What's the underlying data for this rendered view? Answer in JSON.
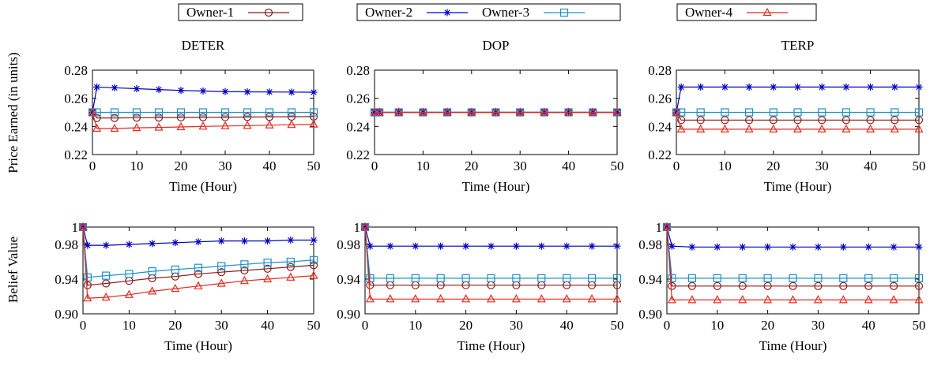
{
  "colors": {
    "owner1": "#8b1a1a",
    "owner2": "#0000c0",
    "owner3": "#1e90c8",
    "owner4": "#e8281e"
  },
  "legend": [
    {
      "label": "Owner-1",
      "marker": "circle"
    },
    {
      "label": "Owner-2",
      "marker": "star"
    },
    {
      "label": "Owner-3",
      "marker": "square"
    },
    {
      "label": "Owner-4",
      "marker": "triangle"
    }
  ],
  "row_labels": {
    "price": "Price Earned (in units)",
    "belief": "Belief Value"
  },
  "chart_data": [
    {
      "type": "line",
      "title": "DETER",
      "xlabel": "Time (Hour)",
      "ylabel": "Price Earned (in units)",
      "xlim": [
        0,
        50
      ],
      "ylim": [
        0.22,
        0.28
      ],
      "xticks": [
        0,
        10,
        20,
        30,
        40,
        50
      ],
      "yticks": [
        "0.22",
        "0.24",
        "0.26",
        "0.28"
      ],
      "x": [
        0,
        1,
        5,
        10,
        15,
        20,
        25,
        30,
        35,
        40,
        45,
        50
      ],
      "series": [
        {
          "name": "Owner-1",
          "values": [
            0.25,
            0.246,
            0.246,
            0.2462,
            0.2463,
            0.2464,
            0.2465,
            0.2466,
            0.2467,
            0.2468,
            0.2469,
            0.247
          ]
        },
        {
          "name": "Owner-2",
          "values": [
            0.25,
            0.268,
            0.2675,
            0.2668,
            0.2662,
            0.2656,
            0.2652,
            0.2648,
            0.2646,
            0.2645,
            0.2644,
            0.2643
          ]
        },
        {
          "name": "Owner-3",
          "values": [
            0.25,
            0.25,
            0.25,
            0.25,
            0.25,
            0.25,
            0.25,
            0.25,
            0.25,
            0.25,
            0.25,
            0.25
          ]
        },
        {
          "name": "Owner-4",
          "values": [
            0.25,
            0.2385,
            0.2385,
            0.239,
            0.2393,
            0.2396,
            0.24,
            0.2403,
            0.2406,
            0.2409,
            0.2412,
            0.2415
          ]
        }
      ]
    },
    {
      "type": "line",
      "title": "DOP",
      "xlabel": "Time (Hour)",
      "ylabel": "Price Earned (in units)",
      "xlim": [
        0,
        50
      ],
      "ylim": [
        0.22,
        0.28
      ],
      "xticks": [
        0,
        10,
        20,
        30,
        40,
        50
      ],
      "yticks": [
        "0.22",
        "0.24",
        "0.26",
        "0.28"
      ],
      "x": [
        0,
        1,
        5,
        10,
        15,
        20,
        25,
        30,
        35,
        40,
        45,
        50
      ],
      "series": [
        {
          "name": "Owner-1",
          "values": [
            0.25,
            0.25,
            0.25,
            0.25,
            0.25,
            0.25,
            0.25,
            0.25,
            0.25,
            0.25,
            0.25,
            0.25
          ]
        },
        {
          "name": "Owner-2",
          "values": [
            0.25,
            0.25,
            0.25,
            0.25,
            0.25,
            0.25,
            0.25,
            0.25,
            0.25,
            0.25,
            0.25,
            0.25
          ]
        },
        {
          "name": "Owner-3",
          "values": [
            0.25,
            0.25,
            0.25,
            0.25,
            0.25,
            0.25,
            0.25,
            0.25,
            0.25,
            0.25,
            0.25,
            0.25
          ]
        },
        {
          "name": "Owner-4",
          "values": [
            0.25,
            0.25,
            0.25,
            0.25,
            0.25,
            0.25,
            0.25,
            0.25,
            0.25,
            0.25,
            0.25,
            0.25
          ]
        }
      ]
    },
    {
      "type": "line",
      "title": "TERP",
      "xlabel": "Time (Hour)",
      "ylabel": "Price Earned (in units)",
      "xlim": [
        0,
        50
      ],
      "ylim": [
        0.22,
        0.28
      ],
      "xticks": [
        0,
        10,
        20,
        30,
        40,
        50
      ],
      "yticks": [
        "0.22",
        "0.24",
        "0.26",
        "0.28"
      ],
      "x": [
        0,
        1,
        5,
        10,
        15,
        20,
        25,
        30,
        35,
        40,
        45,
        50
      ],
      "series": [
        {
          "name": "Owner-1",
          "values": [
            0.25,
            0.2445,
            0.2445,
            0.2445,
            0.2445,
            0.2445,
            0.2445,
            0.2445,
            0.2445,
            0.2445,
            0.2445,
            0.2445
          ]
        },
        {
          "name": "Owner-2",
          "values": [
            0.25,
            0.268,
            0.268,
            0.268,
            0.268,
            0.268,
            0.268,
            0.268,
            0.268,
            0.268,
            0.268,
            0.268
          ]
        },
        {
          "name": "Owner-3",
          "values": [
            0.25,
            0.25,
            0.25,
            0.25,
            0.25,
            0.25,
            0.25,
            0.25,
            0.25,
            0.25,
            0.25,
            0.25
          ]
        },
        {
          "name": "Owner-4",
          "values": [
            0.25,
            0.238,
            0.238,
            0.238,
            0.238,
            0.238,
            0.238,
            0.238,
            0.238,
            0.238,
            0.238,
            0.238
          ]
        }
      ]
    },
    {
      "type": "line",
      "title": "",
      "xlabel": "Time (Hour)",
      "ylabel": "Belief Value",
      "xlim": [
        0,
        50
      ],
      "ylim": [
        0.9,
        1.0
      ],
      "xticks": [
        0,
        10,
        20,
        30,
        40,
        50
      ],
      "yticks": [
        "0.90",
        "0.94",
        "0.98",
        "1"
      ],
      "x": [
        0,
        1,
        5,
        10,
        15,
        20,
        25,
        30,
        35,
        40,
        45,
        50
      ],
      "series": [
        {
          "name": "Owner-1",
          "values": [
            1.0,
            0.933,
            0.935,
            0.938,
            0.941,
            0.943,
            0.946,
            0.948,
            0.95,
            0.952,
            0.954,
            0.956
          ]
        },
        {
          "name": "Owner-2",
          "values": [
            1.0,
            0.979,
            0.979,
            0.98,
            0.981,
            0.982,
            0.983,
            0.984,
            0.984,
            0.984,
            0.985,
            0.985
          ]
        },
        {
          "name": "Owner-3",
          "values": [
            1.0,
            0.942,
            0.944,
            0.946,
            0.949,
            0.951,
            0.953,
            0.955,
            0.957,
            0.959,
            0.96,
            0.962
          ]
        },
        {
          "name": "Owner-4",
          "values": [
            1.0,
            0.918,
            0.919,
            0.922,
            0.926,
            0.929,
            0.932,
            0.935,
            0.938,
            0.94,
            0.942,
            0.944
          ]
        }
      ]
    },
    {
      "type": "line",
      "title": "",
      "xlabel": "Time (Hour)",
      "ylabel": "Belief Value",
      "xlim": [
        0,
        50
      ],
      "ylim": [
        0.9,
        1.0
      ],
      "xticks": [
        0,
        10,
        20,
        30,
        40,
        50
      ],
      "yticks": [
        "0.90",
        "0.94",
        "0.98",
        "1"
      ],
      "x": [
        0,
        1,
        5,
        10,
        15,
        20,
        25,
        30,
        35,
        40,
        45,
        50
      ],
      "series": [
        {
          "name": "Owner-1",
          "values": [
            1.0,
            0.933,
            0.933,
            0.933,
            0.933,
            0.933,
            0.933,
            0.933,
            0.933,
            0.933,
            0.933,
            0.933
          ]
        },
        {
          "name": "Owner-2",
          "values": [
            1.0,
            0.978,
            0.978,
            0.978,
            0.978,
            0.978,
            0.978,
            0.978,
            0.978,
            0.978,
            0.978,
            0.978
          ]
        },
        {
          "name": "Owner-3",
          "values": [
            1.0,
            0.941,
            0.941,
            0.941,
            0.941,
            0.941,
            0.941,
            0.941,
            0.941,
            0.941,
            0.941,
            0.941
          ]
        },
        {
          "name": "Owner-4",
          "values": [
            1.0,
            0.917,
            0.917,
            0.917,
            0.917,
            0.917,
            0.917,
            0.917,
            0.917,
            0.917,
            0.917,
            0.917
          ]
        }
      ]
    },
    {
      "type": "line",
      "title": "",
      "xlabel": "Time (Hour)",
      "ylabel": "Belief Value",
      "xlim": [
        0,
        50
      ],
      "ylim": [
        0.9,
        1.0
      ],
      "xticks": [
        0,
        10,
        20,
        30,
        40,
        50
      ],
      "yticks": [
        "0.90",
        "0.94",
        "0.98",
        "1"
      ],
      "x": [
        0,
        1,
        5,
        10,
        15,
        20,
        25,
        30,
        35,
        40,
        45,
        50
      ],
      "series": [
        {
          "name": "Owner-1",
          "values": [
            1.0,
            0.932,
            0.932,
            0.932,
            0.932,
            0.932,
            0.932,
            0.932,
            0.932,
            0.932,
            0.932,
            0.932
          ]
        },
        {
          "name": "Owner-2",
          "values": [
            1.0,
            0.978,
            0.977,
            0.977,
            0.977,
            0.977,
            0.977,
            0.977,
            0.977,
            0.977,
            0.977,
            0.977
          ]
        },
        {
          "name": "Owner-3",
          "values": [
            1.0,
            0.941,
            0.941,
            0.941,
            0.941,
            0.941,
            0.941,
            0.941,
            0.941,
            0.941,
            0.941,
            0.941
          ]
        },
        {
          "name": "Owner-4",
          "values": [
            1.0,
            0.916,
            0.916,
            0.916,
            0.916,
            0.916,
            0.916,
            0.916,
            0.916,
            0.916,
            0.916,
            0.916
          ]
        }
      ]
    }
  ]
}
